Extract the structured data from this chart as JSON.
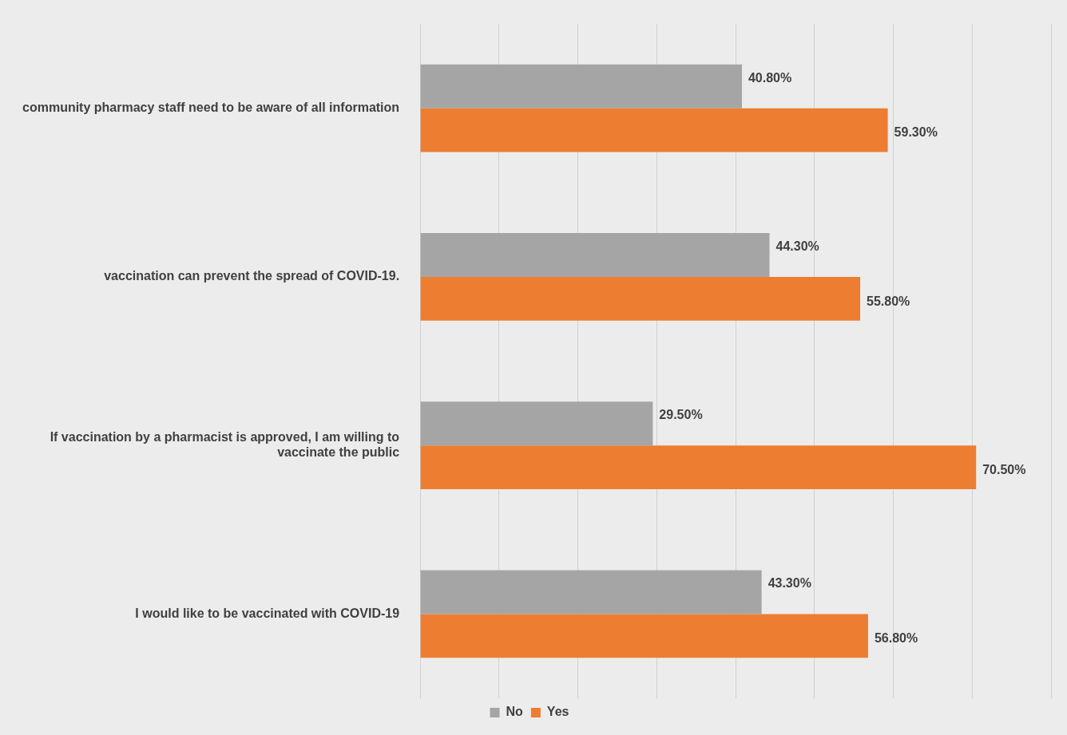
{
  "chart_data": {
    "type": "bar",
    "orientation": "horizontal",
    "categories": [
      "community pharmacy staff need to be aware of all information",
      "vaccination can prevent the spread of COVID-19.",
      "If vaccination by a pharmacist is approved, I am willing to vaccinate the public",
      "I would like to be vaccinated with COVID-19"
    ],
    "series": [
      {
        "name": "No",
        "color": "#a5a5a5",
        "values": [
          40.8,
          44.3,
          29.5,
          43.3
        ],
        "value_labels": [
          "40.80%",
          "44.30%",
          "29.50%",
          "43.30%"
        ]
      },
      {
        "name": "Yes",
        "color": "#ed7d31",
        "values": [
          59.3,
          55.8,
          70.5,
          56.8
        ],
        "value_labels": [
          "59.30%",
          "55.80%",
          "70.50%",
          "56.80%"
        ]
      }
    ],
    "xlim": [
      0,
      80
    ],
    "xticks": [
      {
        "value": 0,
        "label": null
      },
      {
        "value": 10,
        "label": null
      },
      {
        "value": 20,
        "label": null
      },
      {
        "value": 30,
        "label": null
      },
      {
        "value": 40,
        "label": null
      },
      {
        "value": 50,
        "label": null
      },
      {
        "value": 60,
        "label": null
      },
      {
        "value": 70,
        "label": null
      },
      {
        "value": 80,
        "label": null
      }
    ],
    "tick_labels": "y",
    "grid": "x",
    "legend": "bottom"
  }
}
